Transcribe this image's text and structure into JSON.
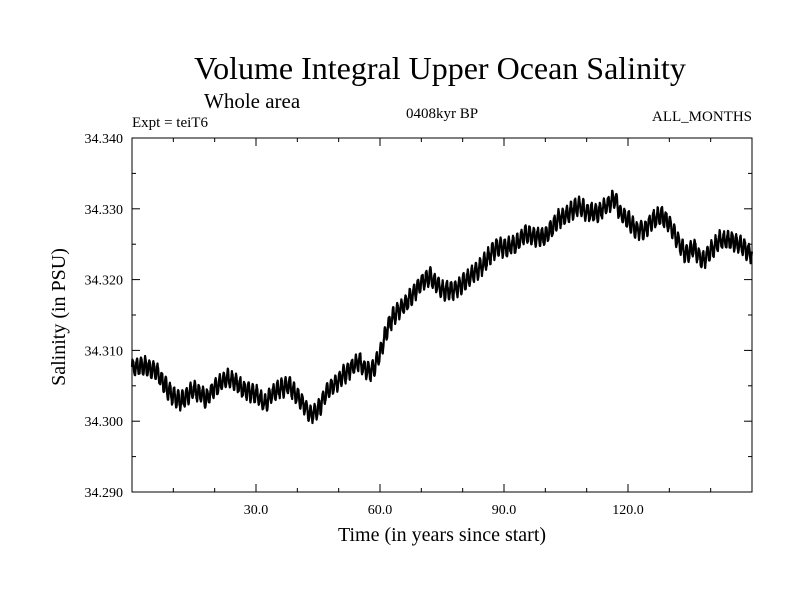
{
  "chart_data": {
    "type": "line",
    "title": "Volume Integral Upper Ocean Salinity",
    "subtitle": "Whole area",
    "annotations": {
      "experiment": "Expt = teiT6",
      "period": "0408kyr BP",
      "months": "ALL_MONTHS"
    },
    "xlabel": "Time (in years since start)",
    "ylabel": "Salinity (in PSU)",
    "xlim": [
      0,
      150
    ],
    "ylim": [
      34.29,
      34.34
    ],
    "xticks": [
      30,
      60,
      90,
      120
    ],
    "xtick_labels": [
      "30.0",
      "60.0",
      "90.0",
      "120.0"
    ],
    "yticks": [
      34.29,
      34.3,
      34.31,
      34.32,
      34.33,
      34.34
    ],
    "ytick_labels": [
      "34.290",
      "34.300",
      "34.310",
      "34.320",
      "34.330",
      "34.340"
    ],
    "grid": false,
    "series": [
      {
        "name": "Salinity",
        "seasonal_amplitude": 0.0012,
        "x": [
          0,
          3,
          6,
          8,
          10,
          12,
          15,
          18,
          20,
          23,
          25,
          27,
          30,
          32,
          35,
          38,
          40,
          42,
          43,
          45,
          47,
          50,
          52,
          55,
          56,
          58,
          60,
          62,
          64,
          66,
          70,
          72,
          75,
          78,
          80,
          84,
          86,
          88,
          90,
          93,
          95,
          98,
          100,
          103,
          105,
          108,
          110,
          113,
          115,
          117,
          118,
          120,
          122,
          124,
          126,
          128,
          130,
          132,
          134,
          136,
          138,
          140,
          142,
          145,
          147,
          150
        ],
        "values": [
          34.3075,
          34.3078,
          34.307,
          34.305,
          34.3035,
          34.3028,
          34.3045,
          34.3032,
          34.3048,
          34.306,
          34.3055,
          34.3045,
          34.3038,
          34.3025,
          34.3045,
          34.305,
          34.3035,
          34.302,
          34.301,
          34.3015,
          34.304,
          34.3058,
          34.307,
          34.3085,
          34.3075,
          34.307,
          34.3095,
          34.3135,
          34.3155,
          34.3165,
          34.3195,
          34.3205,
          34.3185,
          34.3185,
          34.3195,
          34.3215,
          34.323,
          34.3245,
          34.3245,
          34.325,
          34.3265,
          34.326,
          34.326,
          34.3285,
          34.329,
          34.3305,
          34.3295,
          34.3295,
          34.3305,
          34.3315,
          34.3295,
          34.3285,
          34.327,
          34.327,
          34.3285,
          34.329,
          34.328,
          34.3255,
          34.3235,
          34.3245,
          34.3225,
          34.324,
          34.3255,
          34.3255,
          34.325,
          34.3235
        ]
      }
    ]
  }
}
